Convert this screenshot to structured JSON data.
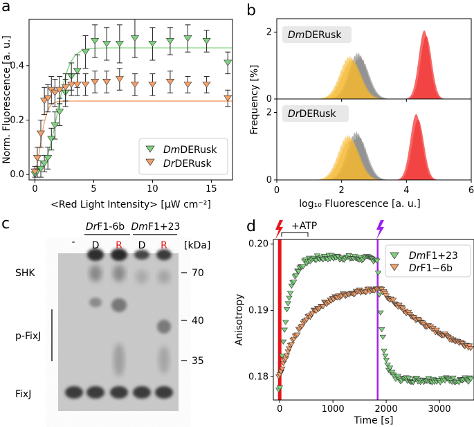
{
  "panels": {
    "a": {
      "letter": "a"
    },
    "b": {
      "letter": "b"
    },
    "c": {
      "letter": "c"
    },
    "d": {
      "letter": "d"
    }
  },
  "chart_data": [
    {
      "id": "a",
      "type": "scatter",
      "xlabel": "<Red Light Intensity> [µW cm⁻²]",
      "ylabel": "Norm. Fluorescence [a. u.]",
      "xlim": [
        -0.5,
        16.8
      ],
      "ylim": [
        -0.02,
        0.57
      ],
      "xticks": [
        "0",
        "5",
        "10",
        "15"
      ],
      "yticks": [
        "0.0",
        "0.2",
        "0.4"
      ],
      "legend": {
        "position": "lower-right",
        "entries": [
          {
            "italic": "Dm",
            "rest": "DERusk",
            "color": "#7FD37F"
          },
          {
            "italic": "Dr",
            "rest": "DERusk",
            "color": "#F4A06A"
          }
        ]
      },
      "series": [
        {
          "name": "DmDERusk",
          "color": "#7FD37F",
          "x": [
            0.0,
            0.2,
            0.5,
            0.8,
            1.1,
            1.4,
            1.7,
            2.1,
            2.6,
            3.1,
            3.6,
            4.3,
            5.1,
            6.1,
            7.2,
            8.5,
            10.0,
            11.5,
            13.0,
            14.6,
            16.4
          ],
          "y": [
            0.0,
            0.01,
            0.02,
            0.04,
            0.06,
            0.13,
            0.18,
            0.23,
            0.3,
            0.36,
            0.38,
            0.45,
            0.49,
            0.48,
            0.48,
            0.5,
            0.48,
            0.49,
            0.5,
            0.49,
            0.41
          ],
          "err": [
            0.02,
            0.02,
            0.03,
            0.03,
            0.04,
            0.04,
            0.05,
            0.05,
            0.05,
            0.05,
            0.06,
            0.06,
            0.06,
            0.06,
            0.07,
            0.07,
            0.06,
            0.05,
            0.05,
            0.04,
            0.04
          ],
          "fit": {
            "type": "sigmoid",
            "top": 0.48,
            "half": 1.9,
            "slope": 0.55
          }
        },
        {
          "name": "DrDERusk",
          "color": "#F4A06A",
          "x": [
            0.0,
            0.2,
            0.5,
            0.8,
            1.1,
            1.4,
            1.7,
            2.1,
            2.6,
            3.1,
            3.6,
            4.3,
            5.1,
            6.1,
            7.2,
            8.5,
            10.0,
            11.5,
            13.0,
            14.6,
            16.4
          ],
          "y": [
            0.01,
            0.06,
            0.15,
            0.27,
            0.28,
            0.31,
            0.3,
            0.31,
            0.32,
            0.33,
            0.33,
            0.33,
            0.34,
            0.34,
            0.35,
            0.33,
            0.33,
            0.34,
            0.33,
            0.33,
            0.28
          ],
          "err": [
            0.02,
            0.04,
            0.05,
            0.05,
            0.05,
            0.05,
            0.05,
            0.05,
            0.05,
            0.04,
            0.04,
            0.04,
            0.04,
            0.04,
            0.04,
            0.04,
            0.04,
            0.04,
            0.03,
            0.03,
            0.03
          ],
          "fit": {
            "type": "sigmoid",
            "top": 0.33,
            "half": 0.45,
            "slope": 0.3
          }
        }
      ]
    },
    {
      "id": "b",
      "type": "area",
      "xlabel": "log₁₀ Fluorescence [a. u.]",
      "ylabel": "Frequency [%]",
      "xlim": [
        0,
        6
      ],
      "ylim": [
        0,
        2.4
      ],
      "xticks": [
        "0",
        "2",
        "4",
        "6"
      ],
      "yticks": [
        "0",
        "2"
      ],
      "subplots": [
        {
          "title": "DmDERusk",
          "title_italic": "Dm",
          "title_rest": "DERusk",
          "series": [
            {
              "name": "gray",
              "color": "#7F7F7F",
              "center": 2.5,
              "sigma": 0.28,
              "peak": 1.35
            },
            {
              "name": "yellow",
              "color": "#F5B82E",
              "center": 2.25,
              "sigma": 0.3,
              "peak": 1.25
            },
            {
              "name": "red",
              "color": "#F23838",
              "center": 4.55,
              "sigma": 0.17,
              "peak": 2.05
            }
          ]
        },
        {
          "title": "DrDERusk",
          "title_italic": "Dr",
          "title_rest": "DERusk",
          "series": [
            {
              "name": "gray",
              "color": "#7F7F7F",
              "center": 2.45,
              "sigma": 0.28,
              "peak": 1.4
            },
            {
              "name": "yellow",
              "color": "#F5B82E",
              "center": 2.2,
              "sigma": 0.3,
              "peak": 1.3
            },
            {
              "name": "red",
              "color": "#F23838",
              "center": 4.3,
              "sigma": 0.18,
              "peak": 1.95
            }
          ]
        }
      ]
    },
    {
      "id": "d",
      "type": "scatter",
      "xlabel": "Time [s]",
      "ylabel": "Anisotropy",
      "xlim": [
        -120,
        3650
      ],
      "ylim": [
        0.1765,
        0.2007
      ],
      "xticks": [
        "0",
        "1000",
        "2000",
        "3000"
      ],
      "yticks": [
        "0.18",
        "0.19",
        "0.20"
      ],
      "annotation": "+ATP",
      "events": [
        {
          "time": 0,
          "color": "#E8161B"
        },
        {
          "time": 1840,
          "color": "#A020F0"
        }
      ],
      "legend": {
        "position": "top-right",
        "entries": [
          {
            "italic": "Dm",
            "rest": "F1+23",
            "color": "#7FD37F"
          },
          {
            "italic": "Dr",
            "rest": "F1−6b",
            "color": "#F4A06A"
          }
        ]
      },
      "series": [
        {
          "name": "DmF1+23",
          "color": "#7FD37F",
          "model": "green",
          "params": {
            "base": 0.178,
            "plateau": 0.198,
            "tau1": 150,
            "drop_to": 0.1795,
            "tau2": 90,
            "t_event": 1840,
            "noise": 0.0004
          }
        },
        {
          "name": "DrF1-6b",
          "color": "#F4A06A",
          "model": "orange",
          "params": {
            "base": 0.18,
            "plateau": 0.1935,
            "tau1": 500,
            "decay_to": 0.1795,
            "tau2": 1700,
            "t_event": 1840,
            "noise": 0.0003
          }
        }
      ]
    }
  ],
  "gel": {
    "lane_groups": [
      {
        "italic": "Dr",
        "rest": "F1-6b"
      },
      {
        "italic": "Dm",
        "rest": "F1+23"
      }
    ],
    "lanes": [
      "-",
      "D",
      "R",
      "D",
      "R"
    ],
    "lane_colors": [
      "#000000",
      "#000000",
      "#E8161B",
      "#000000",
      "#E8161B"
    ],
    "unit": "[kDa]",
    "markers": [
      "70",
      "40",
      "35"
    ],
    "band_labels": [
      "SHK",
      "p-FixJ",
      "FixJ"
    ]
  }
}
